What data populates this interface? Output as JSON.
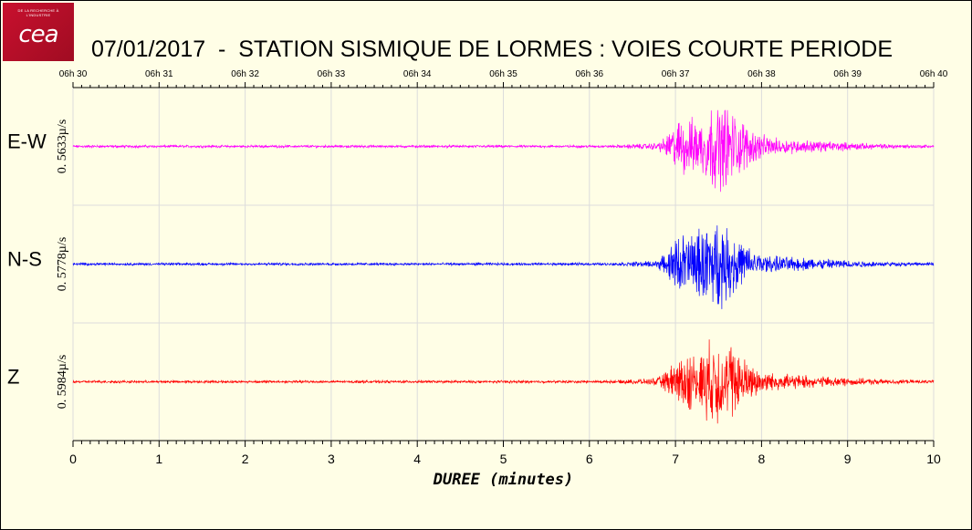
{
  "logo": {
    "tagline": "DE LA RECHERCHE À L'INDUSTRIE",
    "text": "cea"
  },
  "title": "07/01/2017  -  STATION SISMIQUE DE LORMES : VOIES COURTE PERIODE",
  "colors": {
    "background": "#fffee6",
    "logo_red": "#c8102e",
    "ew": "#ff00ff",
    "ns": "#0000ff",
    "z": "#ff0000",
    "grid": "#dcdcdc"
  },
  "chart_data": {
    "type": "line",
    "title": "07/01/2017  -  STATION SISMIQUE DE LORMES : VOIES COURTE PERIODE",
    "xlabel": "DUREE (minutes)",
    "xlim": [
      0,
      10
    ],
    "x_ticks": [
      "0",
      "1",
      "2",
      "3",
      "4",
      "5",
      "6",
      "7",
      "8",
      "9",
      "10"
    ],
    "top_axis_ticks": [
      "06h 30",
      "06h 31",
      "06h 32",
      "06h 33",
      "06h 34",
      "06h 35",
      "06h 36",
      "06h 37",
      "06h 38",
      "06h 39",
      "06h 40"
    ],
    "grid": true,
    "event_onset_min": 6.2,
    "series": [
      {
        "name": "E-W",
        "scale_label": "0. 5633µ/s",
        "color": "#ff00ff",
        "peak_time_min": 7.5
      },
      {
        "name": "N-S",
        "scale_label": "0. 5778µ/s",
        "color": "#0000ff",
        "peak_time_min": 7.45
      },
      {
        "name": "Z",
        "scale_label": "0. 5984µ/s",
        "color": "#ff0000",
        "peak_time_min": 7.5
      }
    ]
  }
}
